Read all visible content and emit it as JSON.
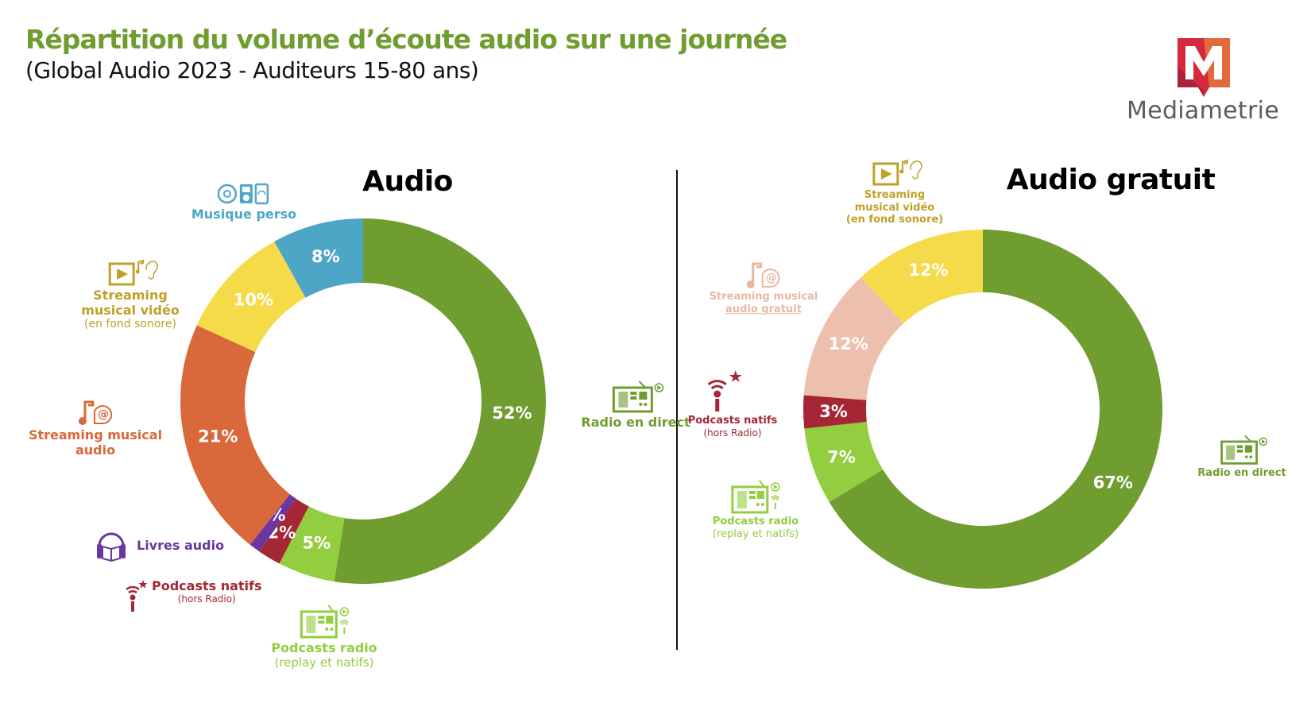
{
  "header": {
    "title": "Répartition du volume d’écoute audio sur une journée",
    "subtitle": "(Global Audio 2023 - Auditeurs 15-80 ans)"
  },
  "logo": {
    "brand": "Mediametrie",
    "colors": {
      "red": "#d42a3c",
      "dark_red": "#a8223a",
      "orange": "#e06a3a"
    }
  },
  "chart_data": [
    {
      "type": "pie",
      "variant": "donut",
      "title": "Audio",
      "start": "12 o'clock, clockwise",
      "slices": [
        {
          "label": "Radio en direct",
          "sub": "",
          "value": 52,
          "display": "52%",
          "color": "#6f9d2f",
          "label_color": "#6f9d2f",
          "icon": "radio-icon"
        },
        {
          "label": "Podcasts radio",
          "sub": "(replay et natifs)",
          "value": 5,
          "display": "5%",
          "color": "#93cd40",
          "label_color": "#93cd40",
          "icon": "radio-podcast-icon"
        },
        {
          "label": "Podcasts natifs",
          "sub": "(hors Radio)",
          "value": 2,
          "display": "2%",
          "color": "#a52635",
          "label_color": "#a52635",
          "icon": "microphone-star-icon"
        },
        {
          "label": "Livres audio",
          "sub": "",
          "value": 1,
          "display": "1%",
          "color": "#6a36a0",
          "label_color": "#6a36a0",
          "icon": "audiobook-icon"
        },
        {
          "label": "Streaming musical audio",
          "sub": "",
          "value": 21,
          "display": "21%",
          "color": "#d9683a",
          "label_color": "#d9683a",
          "icon": "music-at-icon"
        },
        {
          "label": "Streaming musical vidéo",
          "sub": "(en fond sonore)",
          "value": 10,
          "display": "10%",
          "color": "#f5db4a",
          "label_color": "#bfa12a",
          "icon": "video-play-ear-icon"
        },
        {
          "label": "Musique perso",
          "sub": "",
          "value": 8,
          "display": "8%",
          "color": "#4da6c6",
          "label_color": "#4da6c6",
          "icon": "cd-player-phone-icon"
        }
      ]
    },
    {
      "type": "pie",
      "variant": "donut",
      "title": "Audio gratuit",
      "start": "12 o'clock, clockwise",
      "slices": [
        {
          "label": "Radio en direct",
          "sub": "",
          "value": 67,
          "display": "67%",
          "color": "#6f9d2f",
          "label_color": "#6f9d2f",
          "icon": "radio-icon"
        },
        {
          "label": "Podcasts radio",
          "sub": "(replay et natifs)",
          "value": 7,
          "display": "7%",
          "color": "#93cd40",
          "label_color": "#93cd40",
          "icon": "radio-podcast-icon"
        },
        {
          "label": "Podcasts natifs",
          "sub": "(hors Radio)",
          "value": 3,
          "display": "3%",
          "color": "#a52635",
          "label_color": "#a52635",
          "icon": "microphone-star-icon"
        },
        {
          "label": "Streaming musical audio gratuit",
          "sub": "",
          "value": 12,
          "display": "12%",
          "color": "#edc0ad",
          "label_color": "#e8b8a4",
          "icon": "music-at-icon"
        },
        {
          "label": "Streaming musical vidéo",
          "sub": "(en fond sonore)",
          "value": 12,
          "display": "12%",
          "color": "#f5db4a",
          "label_color": "#bfa12a",
          "icon": "video-play-ear-icon"
        }
      ]
    }
  ],
  "labels": {
    "left": {
      "musique_perso": "Musique perso",
      "video_1": "Streaming",
      "video_2": "musical vidéo",
      "video_sub": "(en fond sonore)",
      "audio_1": "Streaming musical",
      "audio_2": "audio",
      "livres": "Livres audio",
      "natifs": "Podcasts natifs",
      "natifs_sub": "(hors Radio)",
      "podradio": "Podcasts radio",
      "podradio_sub": "(replay et natifs)",
      "radio": "Radio en direct"
    },
    "right": {
      "video_1": "Streaming",
      "video_2": "musical vidéo",
      "video_sub": "(en fond sonore)",
      "audio_1": "Streaming musical",
      "audio_2": "audio gratuit",
      "natifs": "Podcasts natifs",
      "natifs_sub": "(hors Radio)",
      "podradio": "Podcasts radio",
      "podradio_sub": "(replay et natifs)",
      "radio": "Radio en direct"
    }
  }
}
